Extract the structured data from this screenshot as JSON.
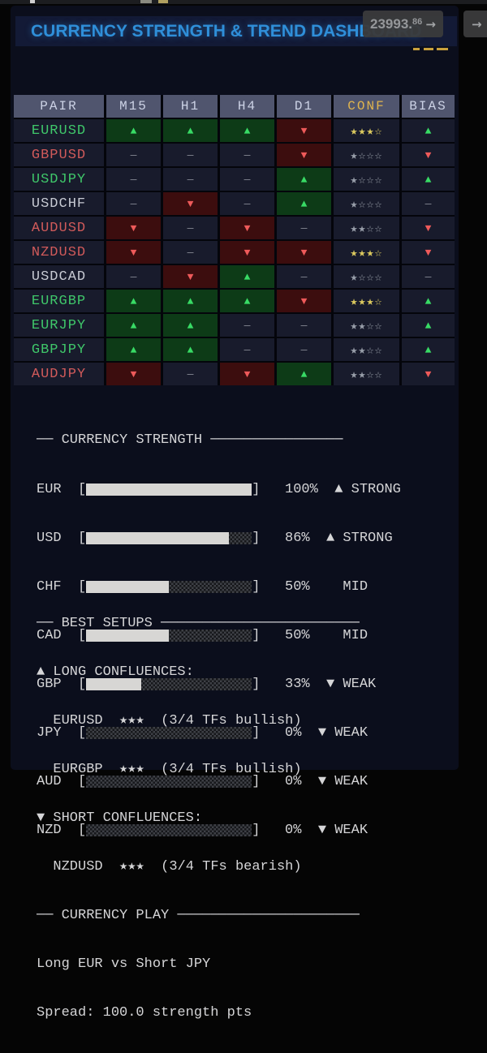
{
  "top_chrome": {
    "price_badge": {
      "int": "23993.",
      "dec": "86",
      "arrow": "→"
    },
    "nav_badge": {
      "arrow": "→"
    }
  },
  "header": {
    "title": "CURRENCY STRENGTH & TREND DASHBOARD"
  },
  "table": {
    "columns": [
      "PAIR",
      "M15",
      "H1",
      "H4",
      "D1",
      "CONF",
      "BIAS"
    ],
    "rows": [
      {
        "pair": "EURUSD",
        "pair_cls": "cell pair up",
        "tf": [
          {
            "g": "▲",
            "cls": "cell tf up"
          },
          {
            "g": "▲",
            "cls": "cell tf up"
          },
          {
            "g": "▲",
            "cls": "cell tf up"
          },
          {
            "g": "▼",
            "cls": "cell tf down"
          }
        ],
        "conf": {
          "stars": "★★★☆",
          "cls": "cell conf gold"
        },
        "bias": {
          "g": "▲",
          "cls": "cell bias up"
        }
      },
      {
        "pair": "GBPUSD",
        "pair_cls": "cell pair down",
        "tf": [
          {
            "g": "—",
            "cls": "cell tf flat"
          },
          {
            "g": "—",
            "cls": "cell tf flat"
          },
          {
            "g": "—",
            "cls": "cell tf flat"
          },
          {
            "g": "▼",
            "cls": "cell tf down"
          }
        ],
        "conf": {
          "stars": "★☆☆☆",
          "cls": "cell conf gray"
        },
        "bias": {
          "g": "▼",
          "cls": "cell bias down"
        }
      },
      {
        "pair": "USDJPY",
        "pair_cls": "cell pair up",
        "tf": [
          {
            "g": "—",
            "cls": "cell tf flat"
          },
          {
            "g": "—",
            "cls": "cell tf flat"
          },
          {
            "g": "—",
            "cls": "cell tf flat"
          },
          {
            "g": "▲",
            "cls": "cell tf up"
          }
        ],
        "conf": {
          "stars": "★☆☆☆",
          "cls": "cell conf gray"
        },
        "bias": {
          "g": "▲",
          "cls": "cell bias up"
        }
      },
      {
        "pair": "USDCHF",
        "pair_cls": "cell pair flat",
        "tf": [
          {
            "g": "—",
            "cls": "cell tf flat"
          },
          {
            "g": "▼",
            "cls": "cell tf down"
          },
          {
            "g": "—",
            "cls": "cell tf flat"
          },
          {
            "g": "▲",
            "cls": "cell tf up"
          }
        ],
        "conf": {
          "stars": "★☆☆☆",
          "cls": "cell conf gray"
        },
        "bias": {
          "g": "—",
          "cls": "cell bias flat"
        }
      },
      {
        "pair": "AUDUSD",
        "pair_cls": "cell pair down",
        "tf": [
          {
            "g": "▼",
            "cls": "cell tf down"
          },
          {
            "g": "—",
            "cls": "cell tf flat"
          },
          {
            "g": "▼",
            "cls": "cell tf down"
          },
          {
            "g": "—",
            "cls": "cell tf flat"
          }
        ],
        "conf": {
          "stars": "★★☆☆",
          "cls": "cell conf gray"
        },
        "bias": {
          "g": "▼",
          "cls": "cell bias down"
        }
      },
      {
        "pair": "NZDUSD",
        "pair_cls": "cell pair down",
        "tf": [
          {
            "g": "▼",
            "cls": "cell tf down"
          },
          {
            "g": "—",
            "cls": "cell tf flat"
          },
          {
            "g": "▼",
            "cls": "cell tf down"
          },
          {
            "g": "▼",
            "cls": "cell tf down"
          }
        ],
        "conf": {
          "stars": "★★★☆",
          "cls": "cell conf gold"
        },
        "bias": {
          "g": "▼",
          "cls": "cell bias down"
        }
      },
      {
        "pair": "USDCAD",
        "pair_cls": "cell pair flat",
        "tf": [
          {
            "g": "—",
            "cls": "cell tf flat"
          },
          {
            "g": "▼",
            "cls": "cell tf down"
          },
          {
            "g": "▲",
            "cls": "cell tf up"
          },
          {
            "g": "—",
            "cls": "cell tf flat"
          }
        ],
        "conf": {
          "stars": "★☆☆☆",
          "cls": "cell conf gray"
        },
        "bias": {
          "g": "—",
          "cls": "cell bias flat"
        }
      },
      {
        "pair": "EURGBP",
        "pair_cls": "cell pair up",
        "tf": [
          {
            "g": "▲",
            "cls": "cell tf up"
          },
          {
            "g": "▲",
            "cls": "cell tf up"
          },
          {
            "g": "▲",
            "cls": "cell tf up"
          },
          {
            "g": "▼",
            "cls": "cell tf down"
          }
        ],
        "conf": {
          "stars": "★★★☆",
          "cls": "cell conf gold"
        },
        "bias": {
          "g": "▲",
          "cls": "cell bias up"
        }
      },
      {
        "pair": "EURJPY",
        "pair_cls": "cell pair up",
        "tf": [
          {
            "g": "▲",
            "cls": "cell tf up"
          },
          {
            "g": "▲",
            "cls": "cell tf up"
          },
          {
            "g": "—",
            "cls": "cell tf flat"
          },
          {
            "g": "—",
            "cls": "cell tf flat"
          }
        ],
        "conf": {
          "stars": "★★☆☆",
          "cls": "cell conf gray"
        },
        "bias": {
          "g": "▲",
          "cls": "cell bias up"
        }
      },
      {
        "pair": "GBPJPY",
        "pair_cls": "cell pair up",
        "tf": [
          {
            "g": "▲",
            "cls": "cell tf up"
          },
          {
            "g": "▲",
            "cls": "cell tf up"
          },
          {
            "g": "—",
            "cls": "cell tf flat"
          },
          {
            "g": "—",
            "cls": "cell tf flat"
          }
        ],
        "conf": {
          "stars": "★★☆☆",
          "cls": "cell conf gray"
        },
        "bias": {
          "g": "▲",
          "cls": "cell bias up"
        }
      },
      {
        "pair": "AUDJPY",
        "pair_cls": "cell pair down",
        "tf": [
          {
            "g": "▼",
            "cls": "cell tf down"
          },
          {
            "g": "—",
            "cls": "cell tf flat"
          },
          {
            "g": "▼",
            "cls": "cell tf down"
          },
          {
            "g": "▲",
            "cls": "cell tf up"
          }
        ],
        "conf": {
          "stars": "★★☆☆",
          "cls": "cell conf gray"
        },
        "bias": {
          "g": "▼",
          "cls": "cell bias down"
        }
      }
    ]
  },
  "strength": {
    "heading": "── CURRENCY STRENGTH ────────────────",
    "rows": [
      {
        "ccy": "EUR",
        "pct": 100,
        "status": "STRONG",
        "prefix": "EUR  [",
        "fill": "width:100%",
        "tail": "]   100%  ▲ STRONG"
      },
      {
        "ccy": "USD",
        "pct": 86,
        "status": "STRONG",
        "prefix": "USD  [",
        "fill": "width:86%",
        "tail": "]   86%  ▲ STRONG"
      },
      {
        "ccy": "CHF",
        "pct": 50,
        "status": "MID",
        "prefix": "CHF  [",
        "fill": "width:50%",
        "tail": "]   50%    MID"
      },
      {
        "ccy": "CAD",
        "pct": 50,
        "status": "MID",
        "prefix": "CAD  [",
        "fill": "width:50%",
        "tail": "]   50%    MID"
      },
      {
        "ccy": "GBP",
        "pct": 33,
        "status": "WEAK",
        "prefix": "GBP  [",
        "fill": "width:33%",
        "tail": "]   33%  ▼ WEAK"
      },
      {
        "ccy": "JPY",
        "pct": 0,
        "status": "WEAK",
        "prefix": "JPY  [",
        "fill": "width:0%",
        "tail": "]   0%  ▼ WEAK"
      },
      {
        "ccy": "AUD",
        "pct": 0,
        "status": "WEAK",
        "prefix": "AUD  [",
        "fill": "width:0%",
        "tail": "]   0%  ▼ WEAK"
      },
      {
        "ccy": "NZD",
        "pct": 0,
        "status": "WEAK",
        "prefix": "NZD  [",
        "fill": "width:0%",
        "tail": "]   0%  ▼ WEAK"
      }
    ]
  },
  "setups": {
    "heading": "── BEST SETUPS ────────────────────────",
    "lines": [
      "▲ LONG CONFLUENCES:",
      "  EURUSD  ★★★  (3/4 TFs bullish)",
      "  EURGBP  ★★★  (3/4 TFs bullish)",
      "▼ SHORT CONFLUENCES:",
      "  NZDUSD  ★★★  (3/4 TFs bearish)"
    ]
  },
  "play": {
    "heading": "── CURRENCY PLAY ──────────────────────",
    "lines": [
      "Long EUR vs Short JPY",
      "Spread: 100.0 strength pts"
    ]
  },
  "colors": {
    "accent_title": "#2f8fd9",
    "bull": "#38db65",
    "bear": "#ee5a5a",
    "gold_star": "#dbc95f",
    "panel_bg": "#0b0e1c",
    "header_cell_bg": "#50556e"
  }
}
